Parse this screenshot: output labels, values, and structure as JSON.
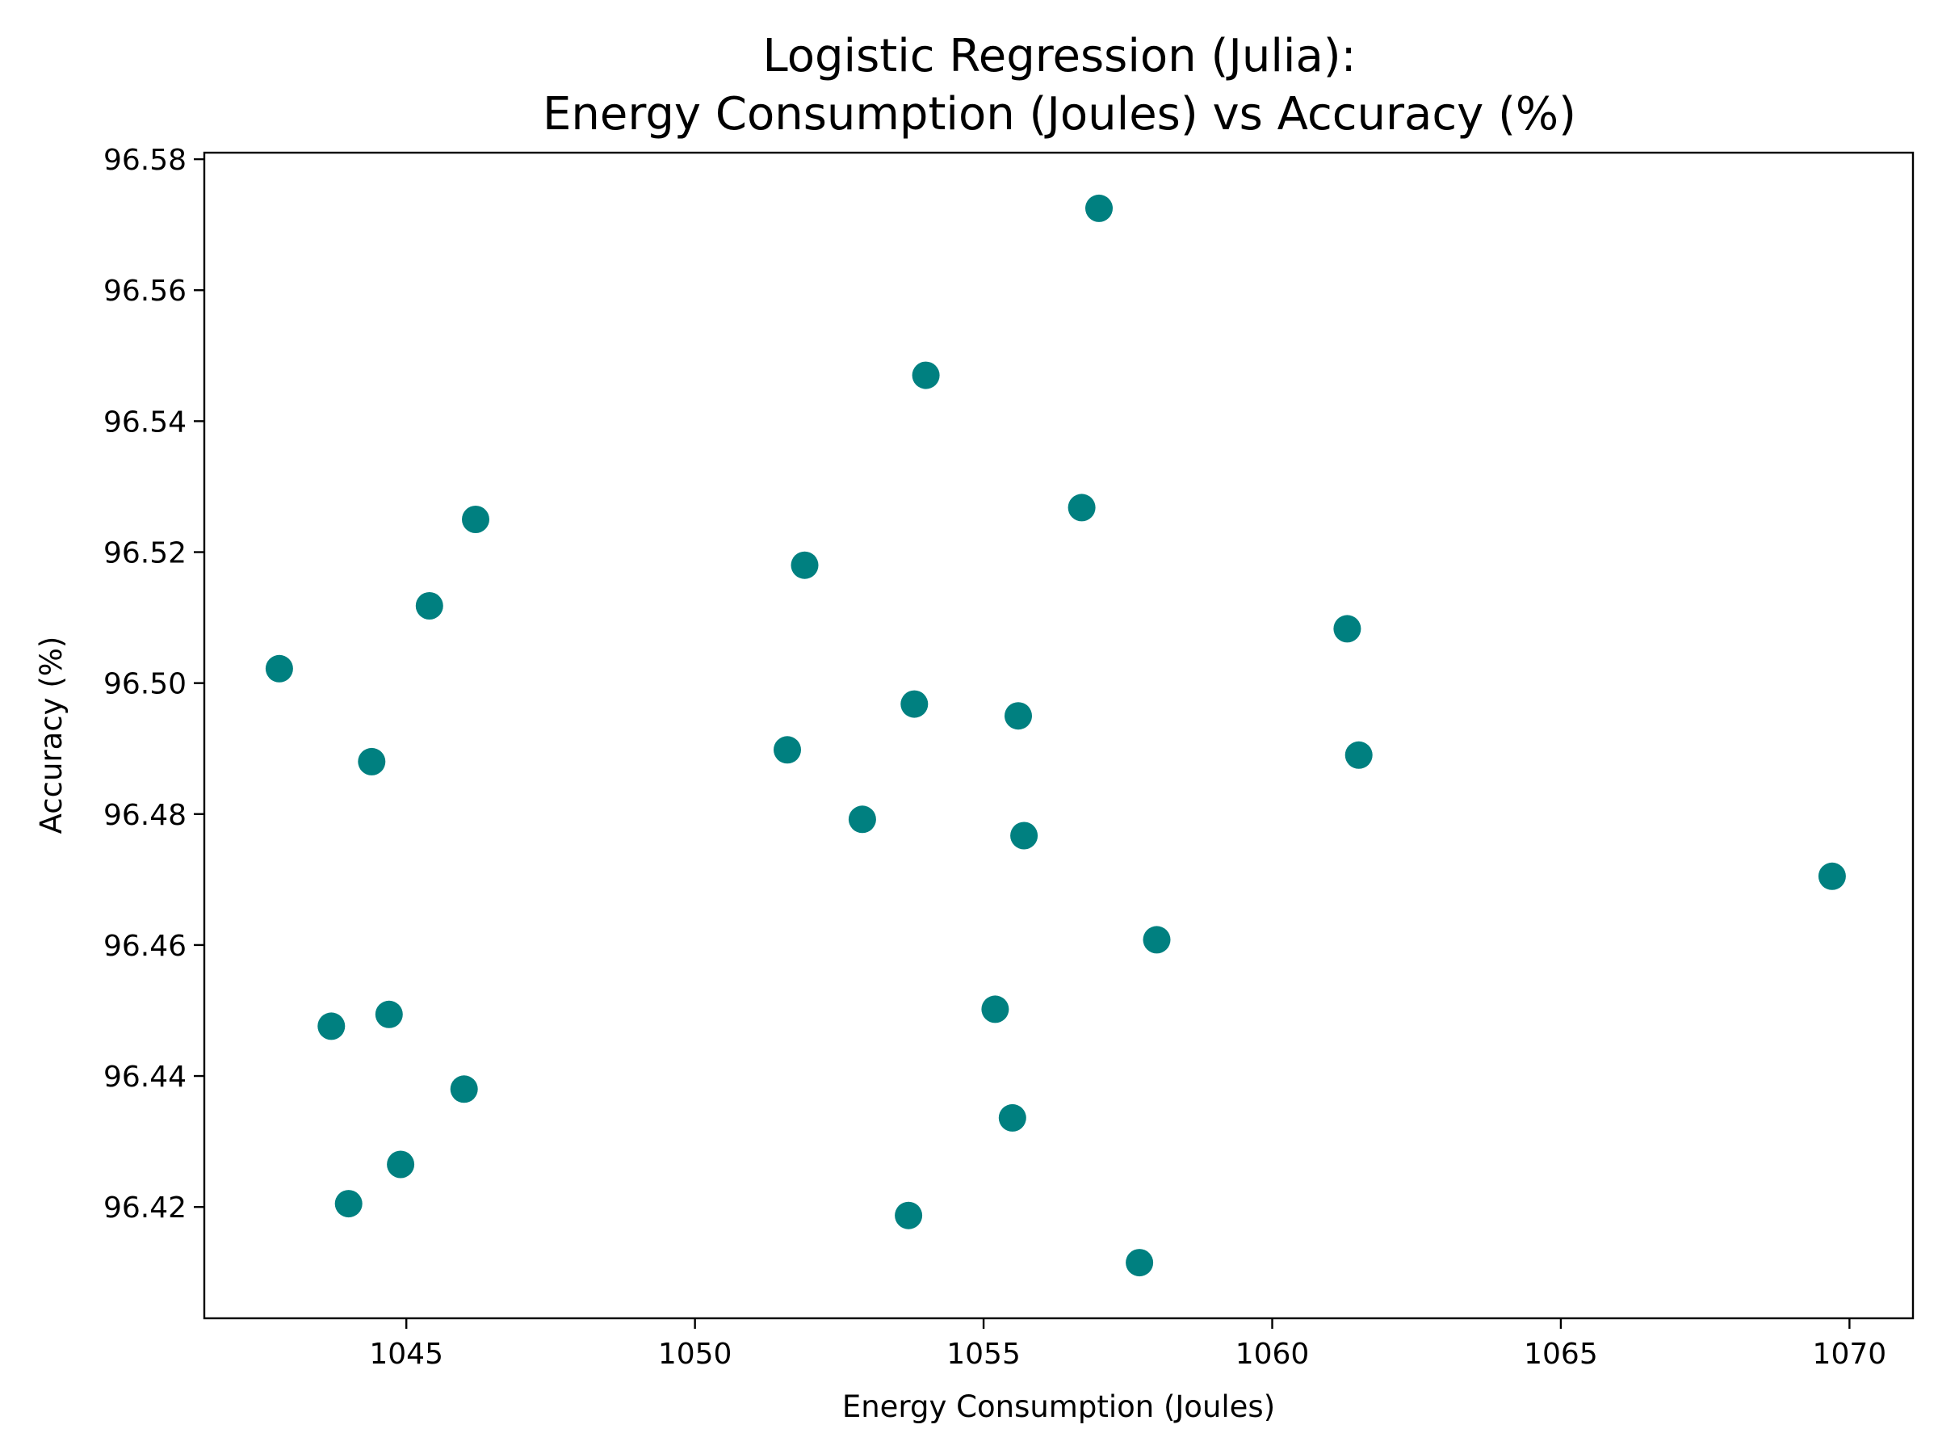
{
  "chart_data": {
    "type": "scatter",
    "title": [
      "Logistic Regression (Julia):",
      "Energy Consumption (Joules) vs Accuracy (%)"
    ],
    "xlabel": "Energy Consumption (Joules)",
    "ylabel": "Accuracy (%)",
    "xlim": [
      1041.5,
      1071.1
    ],
    "ylim": [
      96.403,
      96.581
    ],
    "xticks": [
      1045,
      1050,
      1055,
      1060,
      1065,
      1070
    ],
    "yticks": [
      96.42,
      96.44,
      96.46,
      96.48,
      96.5,
      96.52,
      96.54,
      96.56,
      96.58
    ],
    "ytick_labels": [
      "96.42",
      "96.44",
      "96.46",
      "96.48",
      "96.50",
      "96.52",
      "96.54",
      "96.56",
      "96.58"
    ],
    "grid": false,
    "marker_color": "#008080",
    "points": [
      {
        "x": 1057.0,
        "y": 96.5725
      },
      {
        "x": 1054.0,
        "y": 96.547
      },
      {
        "x": 1056.7,
        "y": 96.5268
      },
      {
        "x": 1046.2,
        "y": 96.525
      },
      {
        "x": 1051.9,
        "y": 96.518
      },
      {
        "x": 1045.4,
        "y": 96.5118
      },
      {
        "x": 1061.3,
        "y": 96.5083
      },
      {
        "x": 1042.8,
        "y": 96.5022
      },
      {
        "x": 1053.8,
        "y": 96.4968
      },
      {
        "x": 1055.6,
        "y": 96.495
      },
      {
        "x": 1051.6,
        "y": 96.4898
      },
      {
        "x": 1061.5,
        "y": 96.489
      },
      {
        "x": 1044.4,
        "y": 96.488
      },
      {
        "x": 1052.9,
        "y": 96.4792
      },
      {
        "x": 1055.7,
        "y": 96.4767
      },
      {
        "x": 1069.7,
        "y": 96.4705
      },
      {
        "x": 1058.0,
        "y": 96.4608
      },
      {
        "x": 1055.2,
        "y": 96.4502
      },
      {
        "x": 1044.7,
        "y": 96.4494
      },
      {
        "x": 1043.7,
        "y": 96.4476
      },
      {
        "x": 1046.0,
        "y": 96.438
      },
      {
        "x": 1055.5,
        "y": 96.4336
      },
      {
        "x": 1044.9,
        "y": 96.4265
      },
      {
        "x": 1044.0,
        "y": 96.4205
      },
      {
        "x": 1053.7,
        "y": 96.4187
      },
      {
        "x": 1057.7,
        "y": 96.4115
      }
    ]
  }
}
